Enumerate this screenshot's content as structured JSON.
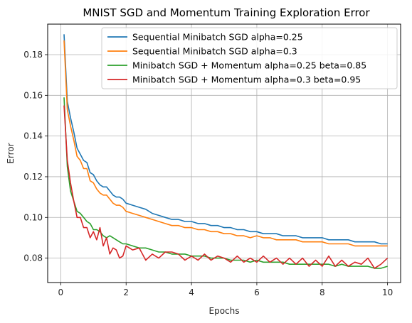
{
  "chart_data": {
    "type": "line",
    "title": "MNIST SGD and Momentum Training Exploration Error",
    "xlabel": "Epochs",
    "ylabel": "Error",
    "xlim": [
      -0.4,
      10.4
    ],
    "ylim": [
      0.068,
      0.195
    ],
    "xticks": [
      "0",
      "2",
      "4",
      "6",
      "8",
      "10"
    ],
    "yticks": [
      "0.08",
      "0.10",
      "0.12",
      "0.14",
      "0.16",
      "0.18"
    ],
    "grid": true,
    "legend_position": "top-right",
    "series": [
      {
        "name": "Sequential Minibatch SGD alpha=0.25",
        "color": "#1f77b4",
        "x": [
          0.1,
          0.2,
          0.3,
          0.4,
          0.5,
          0.6,
          0.7,
          0.8,
          0.9,
          1.0,
          1.1,
          1.2,
          1.3,
          1.4,
          1.5,
          1.6,
          1.7,
          1.8,
          1.9,
          2.0,
          2.2,
          2.4,
          2.6,
          2.8,
          3.0,
          3.2,
          3.4,
          3.6,
          3.8,
          4.0,
          4.2,
          4.4,
          4.6,
          4.8,
          5.0,
          5.2,
          5.4,
          5.6,
          5.8,
          6.0,
          6.2,
          6.4,
          6.6,
          6.8,
          7.0,
          7.2,
          7.4,
          7.6,
          7.8,
          8.0,
          8.2,
          8.4,
          8.6,
          8.8,
          9.0,
          9.2,
          9.4,
          9.6,
          9.8,
          10.0
        ],
        "y": [
          0.19,
          0.157,
          0.149,
          0.142,
          0.134,
          0.131,
          0.128,
          0.127,
          0.122,
          0.121,
          0.118,
          0.116,
          0.115,
          0.115,
          0.113,
          0.111,
          0.11,
          0.11,
          0.109,
          0.107,
          0.106,
          0.105,
          0.104,
          0.102,
          0.101,
          0.1,
          0.099,
          0.099,
          0.098,
          0.098,
          0.097,
          0.097,
          0.096,
          0.096,
          0.095,
          0.095,
          0.094,
          0.094,
          0.093,
          0.093,
          0.092,
          0.092,
          0.092,
          0.091,
          0.091,
          0.091,
          0.09,
          0.09,
          0.09,
          0.09,
          0.089,
          0.089,
          0.089,
          0.089,
          0.088,
          0.088,
          0.088,
          0.088,
          0.087,
          0.087
        ]
      },
      {
        "name": "Sequential Minibatch SGD alpha=0.3",
        "color": "#ff7f0e",
        "x": [
          0.1,
          0.2,
          0.3,
          0.4,
          0.5,
          0.6,
          0.7,
          0.8,
          0.9,
          1.0,
          1.1,
          1.2,
          1.3,
          1.4,
          1.5,
          1.6,
          1.7,
          1.8,
          1.9,
          2.0,
          2.2,
          2.4,
          2.6,
          2.8,
          3.0,
          3.2,
          3.4,
          3.6,
          3.8,
          4.0,
          4.2,
          4.4,
          4.6,
          4.8,
          5.0,
          5.2,
          5.4,
          5.6,
          5.8,
          6.0,
          6.2,
          6.4,
          6.6,
          6.8,
          7.0,
          7.2,
          7.4,
          7.6,
          7.8,
          8.0,
          8.2,
          8.4,
          8.6,
          8.8,
          9.0,
          9.2,
          9.4,
          9.6,
          9.8,
          10.0
        ],
        "y": [
          0.187,
          0.153,
          0.145,
          0.138,
          0.13,
          0.128,
          0.124,
          0.124,
          0.118,
          0.117,
          0.114,
          0.112,
          0.111,
          0.111,
          0.109,
          0.107,
          0.106,
          0.106,
          0.105,
          0.103,
          0.102,
          0.101,
          0.1,
          0.099,
          0.098,
          0.097,
          0.096,
          0.096,
          0.095,
          0.095,
          0.094,
          0.094,
          0.093,
          0.093,
          0.092,
          0.092,
          0.091,
          0.091,
          0.09,
          0.091,
          0.09,
          0.09,
          0.089,
          0.089,
          0.089,
          0.089,
          0.088,
          0.088,
          0.088,
          0.088,
          0.087,
          0.087,
          0.087,
          0.087,
          0.086,
          0.086,
          0.086,
          0.086,
          0.086,
          0.086
        ]
      },
      {
        "name": "Minibatch SGD + Momentum alpha=0.25 beta=0.85",
        "color": "#2ca02c",
        "x": [
          0.1,
          0.2,
          0.3,
          0.4,
          0.5,
          0.6,
          0.7,
          0.8,
          0.9,
          1.0,
          1.1,
          1.2,
          1.3,
          1.4,
          1.5,
          1.6,
          1.7,
          1.8,
          1.9,
          2.0,
          2.2,
          2.4,
          2.6,
          2.8,
          3.0,
          3.2,
          3.4,
          3.6,
          3.8,
          4.0,
          4.2,
          4.4,
          4.6,
          4.8,
          5.0,
          5.2,
          5.4,
          5.6,
          5.8,
          6.0,
          6.2,
          6.4,
          6.6,
          6.8,
          7.0,
          7.2,
          7.4,
          7.6,
          7.8,
          8.0,
          8.2,
          8.4,
          8.6,
          8.8,
          9.0,
          9.2,
          9.4,
          9.6,
          9.8,
          10.0
        ],
        "y": [
          0.159,
          0.125,
          0.113,
          0.108,
          0.103,
          0.102,
          0.1,
          0.098,
          0.097,
          0.094,
          0.094,
          0.093,
          0.091,
          0.09,
          0.091,
          0.09,
          0.089,
          0.088,
          0.087,
          0.087,
          0.086,
          0.085,
          0.085,
          0.084,
          0.083,
          0.083,
          0.082,
          0.082,
          0.082,
          0.081,
          0.081,
          0.081,
          0.08,
          0.08,
          0.08,
          0.079,
          0.079,
          0.079,
          0.078,
          0.079,
          0.078,
          0.078,
          0.078,
          0.078,
          0.077,
          0.077,
          0.077,
          0.077,
          0.077,
          0.077,
          0.077,
          0.076,
          0.077,
          0.076,
          0.076,
          0.076,
          0.076,
          0.075,
          0.075,
          0.076
        ]
      },
      {
        "name": "Minibatch SGD + Momentum alpha=0.3 beta=0.95",
        "color": "#d62728",
        "x": [
          0.1,
          0.2,
          0.3,
          0.4,
          0.5,
          0.6,
          0.7,
          0.8,
          0.9,
          1.0,
          1.1,
          1.2,
          1.3,
          1.4,
          1.5,
          1.6,
          1.7,
          1.8,
          1.9,
          2.0,
          2.2,
          2.4,
          2.6,
          2.8,
          3.0,
          3.2,
          3.4,
          3.6,
          3.8,
          4.0,
          4.2,
          4.4,
          4.6,
          4.8,
          5.0,
          5.2,
          5.4,
          5.6,
          5.8,
          6.0,
          6.2,
          6.4,
          6.6,
          6.8,
          7.0,
          7.2,
          7.4,
          7.6,
          7.8,
          8.0,
          8.2,
          8.4,
          8.6,
          8.8,
          9.0,
          9.2,
          9.4,
          9.6,
          9.8,
          10.0
        ],
        "y": [
          0.155,
          0.128,
          0.117,
          0.108,
          0.1,
          0.1,
          0.095,
          0.095,
          0.09,
          0.093,
          0.089,
          0.095,
          0.086,
          0.09,
          0.082,
          0.085,
          0.084,
          0.08,
          0.081,
          0.086,
          0.084,
          0.085,
          0.079,
          0.082,
          0.08,
          0.083,
          0.083,
          0.082,
          0.079,
          0.081,
          0.079,
          0.082,
          0.079,
          0.081,
          0.08,
          0.078,
          0.081,
          0.078,
          0.08,
          0.078,
          0.081,
          0.078,
          0.08,
          0.077,
          0.08,
          0.077,
          0.08,
          0.076,
          0.079,
          0.076,
          0.081,
          0.076,
          0.079,
          0.076,
          0.078,
          0.077,
          0.08,
          0.075,
          0.077,
          0.08
        ]
      }
    ]
  }
}
